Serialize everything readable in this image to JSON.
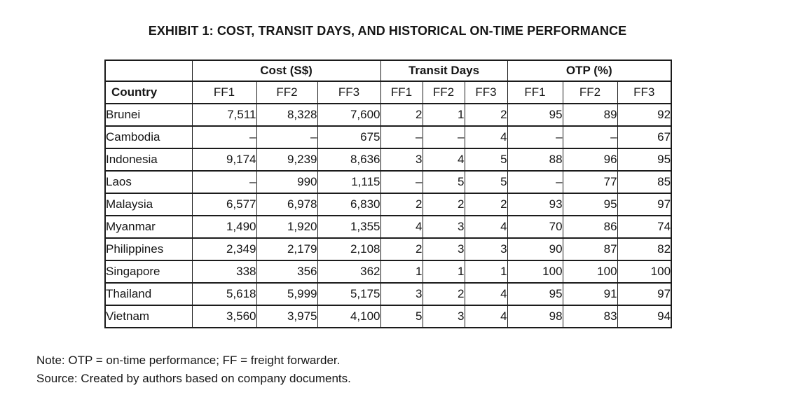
{
  "page": {
    "title": "EXHIBIT 1: COST, TRANSIT DAYS, AND HISTORICAL ON-TIME PERFORMANCE",
    "note": "Note: OTP = on-time performance; FF = freight forwarder.",
    "source": "Source: Created by authors based on company documents."
  },
  "table": {
    "column_groups": [
      {
        "label": "",
        "span": 1
      },
      {
        "label": "Cost (S$)",
        "span": 3
      },
      {
        "label": "Transit Days",
        "span": 3
      },
      {
        "label": "OTP (%)",
        "span": 3
      }
    ],
    "sub_headers": [
      "Country",
      "FF1",
      "FF2",
      "FF3",
      "FF1",
      "FF2",
      "FF3",
      "FF1",
      "FF2",
      "FF3"
    ],
    "rows": [
      {
        "country": "Brunei",
        "cost": [
          "7,511",
          "8,328",
          "7,600"
        ],
        "transit": [
          "2",
          "1",
          "2"
        ],
        "otp": [
          "95",
          "89",
          "92"
        ]
      },
      {
        "country": "Cambodia",
        "cost": [
          "–",
          "–",
          "675"
        ],
        "transit": [
          "–",
          "–",
          "4"
        ],
        "otp": [
          "–",
          "–",
          "67"
        ]
      },
      {
        "country": "Indonesia",
        "cost": [
          "9,174",
          "9,239",
          "8,636"
        ],
        "transit": [
          "3",
          "4",
          "5"
        ],
        "otp": [
          "88",
          "96",
          "95"
        ]
      },
      {
        "country": "Laos",
        "cost": [
          "–",
          "990",
          "1,115"
        ],
        "transit": [
          "–",
          "5",
          "5"
        ],
        "otp": [
          "–",
          "77",
          "85"
        ]
      },
      {
        "country": "Malaysia",
        "cost": [
          "6,577",
          "6,978",
          "6,830"
        ],
        "transit": [
          "2",
          "2",
          "2"
        ],
        "otp": [
          "93",
          "95",
          "97"
        ]
      },
      {
        "country": "Myanmar",
        "cost": [
          "1,490",
          "1,920",
          "1,355"
        ],
        "transit": [
          "4",
          "3",
          "4"
        ],
        "otp": [
          "70",
          "86",
          "74"
        ]
      },
      {
        "country": "Philippines",
        "cost": [
          "2,349",
          "2,179",
          "2,108"
        ],
        "transit": [
          "2",
          "3",
          "3"
        ],
        "otp": [
          "90",
          "87",
          "82"
        ]
      },
      {
        "country": "Singapore",
        "cost": [
          "338",
          "356",
          "362"
        ],
        "transit": [
          "1",
          "1",
          "1"
        ],
        "otp": [
          "100",
          "100",
          "100"
        ]
      },
      {
        "country": "Thailand",
        "cost": [
          "5,618",
          "5,999",
          "5,175"
        ],
        "transit": [
          "3",
          "2",
          "4"
        ],
        "otp": [
          "95",
          "91",
          "97"
        ]
      },
      {
        "country": "Vietnam",
        "cost": [
          "3,560",
          "3,975",
          "4,100"
        ],
        "transit": [
          "5",
          "3",
          "4"
        ],
        "otp": [
          "98",
          "83",
          "94"
        ]
      }
    ]
  },
  "colors": {
    "text": "#161616",
    "border": "#1b1b1b",
    "background": "#ffffff"
  }
}
